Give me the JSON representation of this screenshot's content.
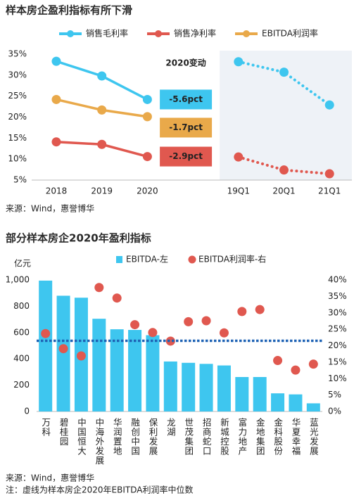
{
  "chart_data": [
    {
      "type": "line",
      "title": "样本房企盈利指标有所下滑",
      "categories": [
        "2018",
        "2019",
        "2020",
        null,
        "19Q1",
        "20Q1",
        "21Q1"
      ],
      "series": [
        {
          "name": "销售毛利率",
          "color": "#3ec6ef",
          "values": [
            33.3,
            29.8,
            24.2,
            null,
            33.2,
            30.7,
            22.9
          ],
          "change_label": "-5.6pct"
        },
        {
          "name": "销售净利率",
          "color": "#e0584f",
          "values": [
            14.1,
            13.5,
            10.6,
            null,
            10.5,
            7.4,
            6.5
          ],
          "change_label": "-2.9pct"
        },
        {
          "name": "EBITDA利润率",
          "color": "#e9a94a",
          "values": [
            24.2,
            21.7,
            20.1,
            null,
            null,
            null,
            null
          ],
          "change_label": "-1.7pct"
        }
      ],
      "change_title": "2020变动",
      "ylim": [
        5,
        35
      ],
      "yticks": [
        {
          "value": 5,
          "label": "5%"
        },
        {
          "value": 10,
          "label": "10%"
        },
        {
          "value": 15,
          "label": "15%"
        },
        {
          "value": 20,
          "label": "20%"
        },
        {
          "value": 25,
          "label": "25%"
        },
        {
          "value": 30,
          "label": "30%"
        },
        {
          "value": 35,
          "label": "35%"
        }
      ],
      "grid": false,
      "source": "来源：Wind，惠誉博华"
    },
    {
      "type": "combo",
      "title": "部分样本房企2020年盈利指标",
      "y_label": "亿元",
      "categories": [
        "万科",
        "碧桂园",
        "中国恒大",
        "中海外发展",
        "华润置地",
        "融创中国",
        "保利发展",
        "龙湖",
        "世茂集团",
        "招商蛇口",
        "新城控股",
        "富力地产",
        "金地集团",
        "金科股份",
        "华夏幸福",
        "蓝光发展"
      ],
      "series": [
        {
          "name": "EBITDA-左",
          "type": "bar",
          "color": "#3ec6ef",
          "values": [
            995,
            880,
            865,
            705,
            625,
            620,
            580,
            380,
            370,
            362,
            350,
            262,
            262,
            138,
            130,
            62
          ]
        },
        {
          "name": "EBITDA利润率-右",
          "type": "scatter",
          "axis": "y2",
          "color": "#e0584f",
          "values": [
            23.7,
            19.1,
            16.9,
            37.7,
            34.5,
            26.4,
            24.0,
            21.4,
            27.3,
            27.6,
            23.9,
            30.4,
            31.0,
            15.5,
            12.6,
            14.4
          ]
        }
      ],
      "median": 21.5,
      "median_color": "#1f63b5",
      "ylim": [
        0,
        1000
      ],
      "yticks": [
        0,
        200,
        400,
        600,
        800,
        {
          "value": 1000,
          "label": "1,000"
        }
      ],
      "y2lim": [
        0,
        40
      ],
      "y2ticks": [
        {
          "value": 0,
          "label": "0%"
        },
        {
          "value": 5,
          "label": "5%"
        },
        {
          "value": 10,
          "label": "10%"
        },
        {
          "value": 15,
          "label": "15%"
        },
        {
          "value": 20,
          "label": "20%"
        },
        {
          "value": 25,
          "label": "25%"
        },
        {
          "value": 30,
          "label": "30%"
        },
        {
          "value": 35,
          "label": "35%"
        },
        {
          "value": 40,
          "label": "40%"
        }
      ],
      "grid": false,
      "source": "来源：Wind，惠誉博华",
      "note": "注：虚线为样本房企2020年EBITDA利润率中位数"
    }
  ]
}
